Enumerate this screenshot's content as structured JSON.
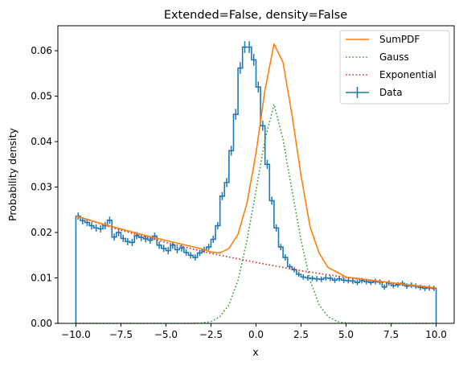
{
  "chart_data": {
    "type": "line",
    "title": "Extended=False, density=False",
    "xlabel": "x",
    "ylabel": "Probability density",
    "xlim": [
      -11.0,
      11.0
    ],
    "ylim": [
      0.0,
      0.0655
    ],
    "xticks": [
      -10.0,
      -7.5,
      -5.0,
      -2.5,
      0.0,
      2.5,
      5.0,
      7.5,
      10.0
    ],
    "xtick_labels": [
      "−10.0",
      "−7.5",
      "−5.0",
      "−2.5",
      "0.0",
      "2.5",
      "5.0",
      "7.5",
      "10.0"
    ],
    "yticks": [
      0.0,
      0.01,
      0.02,
      0.03,
      0.04,
      0.05,
      0.06
    ],
    "ytick_labels": [
      "0.00",
      "0.01",
      "0.02",
      "0.03",
      "0.04",
      "0.05",
      "0.06"
    ],
    "grid": false,
    "legend_position": "top-right",
    "legend": [
      "SumPDF",
      "Gauss",
      "Exponential",
      "Data"
    ],
    "series": [
      {
        "name": "Data",
        "kind": "histogram-step-with-errorbars",
        "color": "#1f77b4",
        "bin_edges_range": [
          -10.0,
          10.0
        ],
        "bin_count": 80,
        "values": [
          0.0236,
          0.0226,
          0.0222,
          0.0215,
          0.021,
          0.0208,
          0.0215,
          0.0227,
          0.019,
          0.02,
          0.0187,
          0.018,
          0.0178,
          0.0193,
          0.0189,
          0.0186,
          0.0183,
          0.0192,
          0.0172,
          0.0165,
          0.016,
          0.0172,
          0.0162,
          0.0166,
          0.0156,
          0.015,
          0.0145,
          0.0155,
          0.0162,
          0.0168,
          0.0185,
          0.0215,
          0.028,
          0.031,
          0.038,
          0.046,
          0.0562,
          0.0608,
          0.0608,
          0.058,
          0.052,
          0.0435,
          0.035,
          0.027,
          0.021,
          0.0168,
          0.0145,
          0.0125,
          0.0118,
          0.0108,
          0.0102,
          0.01,
          0.0099,
          0.0098,
          0.0097,
          0.01,
          0.0099,
          0.0095,
          0.0098,
          0.0095,
          0.0094,
          0.0093,
          0.009,
          0.0094,
          0.0092,
          0.009,
          0.0092,
          0.0091,
          0.008,
          0.0089,
          0.0083,
          0.0085,
          0.0088,
          0.0082,
          0.0084,
          0.0082,
          0.0079,
          0.0077,
          0.0078,
          0.0077
        ],
        "errors": [
          0.0008,
          0.0008,
          0.0008,
          0.0008,
          0.0008,
          0.0008,
          0.0008,
          0.0008,
          0.0008,
          0.0008,
          0.0008,
          0.0008,
          0.0008,
          0.0008,
          0.0008,
          0.0008,
          0.0008,
          0.0008,
          0.0008,
          0.0008,
          0.0008,
          0.0008,
          0.0008,
          0.0008,
          0.0007,
          0.0007,
          0.0007,
          0.0007,
          0.0007,
          0.0007,
          0.0008,
          0.0008,
          0.0009,
          0.001,
          0.0011,
          0.0012,
          0.0013,
          0.0013,
          0.0013,
          0.0013,
          0.0012,
          0.0011,
          0.001,
          0.0009,
          0.0008,
          0.0007,
          0.0007,
          0.0006,
          0.0006,
          0.0006,
          0.0006,
          0.0006,
          0.0006,
          0.0006,
          0.0006,
          0.0006,
          0.0006,
          0.0006,
          0.0006,
          0.0006,
          0.0006,
          0.0006,
          0.0006,
          0.0006,
          0.0006,
          0.0006,
          0.0006,
          0.0006,
          0.0006,
          0.0006,
          0.0006,
          0.0006,
          0.0006,
          0.0006,
          0.0006,
          0.0006,
          0.0006,
          0.0006,
          0.0006,
          0.0006
        ]
      },
      {
        "name": "SumPDF",
        "kind": "line",
        "color": "#ff7f0e",
        "style": "solid",
        "x": [
          -10.0,
          -8.0,
          -6.0,
          -4.0,
          -3.0,
          -2.5,
          -2.0,
          -1.5,
          -1.0,
          -0.5,
          0.0,
          0.5,
          1.0,
          1.5,
          2.0,
          2.5,
          3.0,
          3.5,
          4.0,
          5.0,
          6.0,
          8.0,
          10.0
        ],
        "y": [
          0.0236,
          0.0213,
          0.0192,
          0.0173,
          0.0164,
          0.0157,
          0.0155,
          0.0165,
          0.0196,
          0.0265,
          0.0375,
          0.0514,
          0.0615,
          0.0574,
          0.0458,
          0.0325,
          0.0213,
          0.0155,
          0.0123,
          0.0102,
          0.0097,
          0.0087,
          0.0078
        ]
      },
      {
        "name": "Gauss",
        "kind": "line",
        "color": "#2ca02c",
        "style": "dotted",
        "x": [
          -10.0,
          -3.5,
          -3.0,
          -2.5,
          -2.0,
          -1.5,
          -1.0,
          -0.5,
          0.0,
          0.5,
          1.0,
          1.5,
          2.0,
          2.5,
          3.0,
          3.5,
          4.0,
          4.5,
          5.0,
          5.5,
          10.0
        ],
        "y": [
          0.0,
          0.0,
          0.0001,
          0.0004,
          0.0015,
          0.0041,
          0.0095,
          0.0183,
          0.0292,
          0.0405,
          0.0482,
          0.0405,
          0.0292,
          0.0183,
          0.0095,
          0.0041,
          0.0015,
          0.0004,
          0.0001,
          0.0,
          0.0
        ]
      },
      {
        "name": "Exponential",
        "kind": "line",
        "color": "#d62728",
        "style": "dotted",
        "x": [
          -10.0,
          -7.5,
          -5.0,
          -2.5,
          0.0,
          2.5,
          5.0,
          7.5,
          10.0
        ],
        "y": [
          0.0236,
          0.0205,
          0.0178,
          0.0154,
          0.0134,
          0.0116,
          0.0101,
          0.0088,
          0.0076
        ]
      }
    ]
  }
}
